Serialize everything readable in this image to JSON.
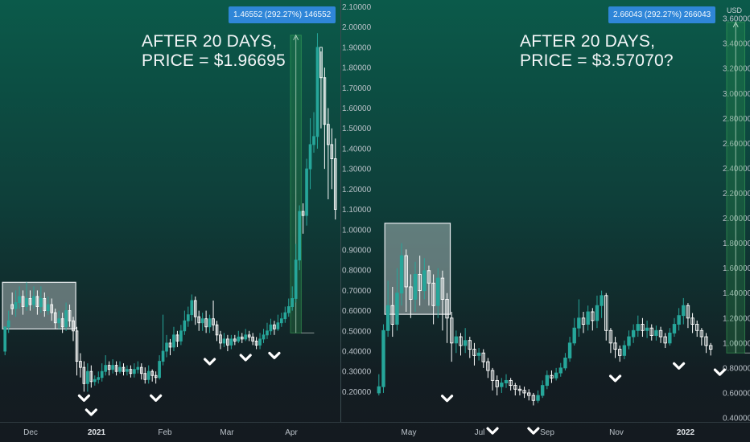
{
  "annotations": {
    "left_line1": "AFTER 20 DAYS,",
    "left_line2": "PRICE = $1.96695",
    "right_line1": "AFTER 20 DAYS,",
    "right_line2": "PRICE = $3.57070?"
  },
  "badges": {
    "left": "1.46552 (292.27%) 146552",
    "right": "2.66043 (292.27%) 266043"
  },
  "currency_label": "USD",
  "colors": {
    "up": "#26a69a",
    "down": "#ffffff",
    "box": "#e8ecef",
    "measure": "#2e9b4e",
    "badge": "#2f86d8"
  },
  "chart_data": [
    {
      "type": "candlestick",
      "panel": "left",
      "title": "",
      "x_ticks": [
        "Dec",
        "2021",
        "Feb",
        "Mar",
        "Apr"
      ],
      "bold_ticks": [
        "2021"
      ],
      "y_ticks": [
        "0.20000",
        "0.30000",
        "0.40000",
        "0.50000",
        "0.60000",
        "0.70000",
        "0.80000",
        "0.90000",
        "1.00000",
        "1.10000",
        "1.20000",
        "1.30000",
        "1.40000",
        "1.50000",
        "1.60000",
        "1.70000",
        "1.80000",
        "1.90000",
        "2.00000",
        "2.10000"
      ],
      "ylim": [
        0.15,
        2.11
      ],
      "candles": [
        [
          0.4,
          0.52,
          0.45,
          0.38
        ],
        [
          0.52,
          0.55,
          0.6,
          0.49
        ],
        [
          0.63,
          0.61,
          0.69,
          0.58
        ],
        [
          0.61,
          0.64,
          0.7,
          0.57
        ],
        [
          0.64,
          0.67,
          0.72,
          0.61
        ],
        [
          0.67,
          0.62,
          0.7,
          0.58
        ],
        [
          0.62,
          0.66,
          0.74,
          0.6
        ],
        [
          0.66,
          0.63,
          0.7,
          0.6
        ],
        [
          0.63,
          0.67,
          0.72,
          0.61
        ],
        [
          0.67,
          0.62,
          0.7,
          0.58
        ],
        [
          0.62,
          0.66,
          0.72,
          0.59
        ],
        [
          0.66,
          0.6,
          0.69,
          0.57
        ],
        [
          0.6,
          0.63,
          0.67,
          0.58
        ],
        [
          0.63,
          0.59,
          0.66,
          0.55
        ],
        [
          0.59,
          0.54,
          0.61,
          0.51
        ],
        [
          0.54,
          0.56,
          0.6,
          0.51
        ],
        [
          0.56,
          0.52,
          0.59,
          0.49
        ],
        [
          0.52,
          0.6,
          0.64,
          0.5
        ],
        [
          0.6,
          0.55,
          0.63,
          0.52
        ],
        [
          0.55,
          0.5,
          0.57,
          0.45
        ],
        [
          0.5,
          0.35,
          0.52,
          0.28
        ],
        [
          0.35,
          0.32,
          0.39,
          0.27
        ],
        [
          0.32,
          0.24,
          0.35,
          0.2
        ],
        [
          0.24,
          0.3,
          0.34,
          0.2
        ],
        [
          0.3,
          0.25,
          0.33,
          0.22
        ],
        [
          0.25,
          0.26,
          0.28,
          0.23
        ],
        [
          0.26,
          0.27,
          0.3,
          0.24
        ],
        [
          0.27,
          0.3,
          0.34,
          0.25
        ],
        [
          0.3,
          0.33,
          0.38,
          0.28
        ],
        [
          0.33,
          0.31,
          0.35,
          0.28
        ],
        [
          0.31,
          0.33,
          0.36,
          0.29
        ],
        [
          0.33,
          0.3,
          0.35,
          0.28
        ],
        [
          0.3,
          0.32,
          0.35,
          0.29
        ],
        [
          0.32,
          0.3,
          0.34,
          0.28
        ],
        [
          0.3,
          0.31,
          0.33,
          0.28
        ],
        [
          0.31,
          0.29,
          0.33,
          0.27
        ],
        [
          0.29,
          0.31,
          0.34,
          0.27
        ],
        [
          0.31,
          0.32,
          0.35,
          0.29
        ],
        [
          0.32,
          0.29,
          0.34,
          0.26
        ],
        [
          0.29,
          0.26,
          0.32,
          0.24
        ],
        [
          0.26,
          0.3,
          0.33,
          0.24
        ],
        [
          0.3,
          0.28,
          0.31,
          0.25
        ],
        [
          0.28,
          0.27,
          0.3,
          0.24
        ],
        [
          0.27,
          0.35,
          0.38,
          0.26
        ],
        [
          0.35,
          0.4,
          0.58,
          0.33
        ],
        [
          0.4,
          0.44,
          0.48,
          0.37
        ],
        [
          0.44,
          0.42,
          0.46,
          0.38
        ],
        [
          0.42,
          0.48,
          0.52,
          0.4
        ],
        [
          0.48,
          0.45,
          0.5,
          0.42
        ],
        [
          0.45,
          0.5,
          0.53,
          0.43
        ],
        [
          0.5,
          0.55,
          0.6,
          0.48
        ],
        [
          0.55,
          0.58,
          0.62,
          0.52
        ],
        [
          0.58,
          0.65,
          0.68,
          0.55
        ],
        [
          0.65,
          0.57,
          0.67,
          0.53
        ],
        [
          0.57,
          0.54,
          0.6,
          0.5
        ],
        [
          0.54,
          0.56,
          0.59,
          0.5
        ],
        [
          0.56,
          0.52,
          0.6,
          0.49
        ],
        [
          0.52,
          0.56,
          0.58,
          0.49
        ],
        [
          0.56,
          0.53,
          0.65,
          0.5
        ],
        [
          0.53,
          0.48,
          0.55,
          0.45
        ],
        [
          0.48,
          0.44,
          0.5,
          0.41
        ],
        [
          0.44,
          0.46,
          0.49,
          0.42
        ],
        [
          0.46,
          0.43,
          0.48,
          0.4
        ],
        [
          0.43,
          0.46,
          0.48,
          0.41
        ],
        [
          0.46,
          0.45,
          0.48,
          0.43
        ],
        [
          0.45,
          0.47,
          0.5,
          0.44
        ],
        [
          0.47,
          0.46,
          0.49,
          0.44
        ],
        [
          0.46,
          0.48,
          0.51,
          0.45
        ],
        [
          0.48,
          0.47,
          0.5,
          0.45
        ],
        [
          0.47,
          0.45,
          0.49,
          0.43
        ],
        [
          0.45,
          0.43,
          0.47,
          0.41
        ],
        [
          0.43,
          0.46,
          0.49,
          0.41
        ],
        [
          0.46,
          0.48,
          0.51,
          0.44
        ],
        [
          0.48,
          0.5,
          0.54,
          0.46
        ],
        [
          0.5,
          0.53,
          0.56,
          0.48
        ],
        [
          0.53,
          0.51,
          0.55,
          0.48
        ],
        [
          0.51,
          0.54,
          0.58,
          0.5
        ],
        [
          0.54,
          0.56,
          0.59,
          0.52
        ],
        [
          0.56,
          0.59,
          0.62,
          0.54
        ],
        [
          0.59,
          0.62,
          0.66,
          0.57
        ],
        [
          0.62,
          0.66,
          0.72,
          0.6
        ],
        [
          0.66,
          0.85,
          0.93,
          0.64
        ],
        [
          0.85,
          1.09,
          1.12,
          0.8
        ],
        [
          1.09,
          1.07,
          1.13,
          0.98
        ],
        [
          1.07,
          1.3,
          1.35,
          1.02
        ],
        [
          1.3,
          1.42,
          1.55,
          1.2
        ],
        [
          1.42,
          1.46,
          1.58,
          1.38
        ],
        [
          1.46,
          1.9,
          1.97,
          1.4
        ],
        [
          1.9,
          1.75,
          1.88,
          1.5
        ],
        [
          1.75,
          1.52,
          1.8,
          1.3
        ],
        [
          1.52,
          1.42,
          1.6,
          1.15
        ],
        [
          1.42,
          1.35,
          1.5,
          1.2
        ],
        [
          1.35,
          1.1,
          1.45,
          1.05
        ]
      ]
    },
    {
      "type": "candlestick",
      "panel": "right",
      "title": "",
      "x_ticks": [
        "May",
        "Jul",
        "Sep",
        "Nov",
        "2022"
      ],
      "bold_ticks": [
        "2022"
      ],
      "y_ticks": [
        "0.40000",
        "0.60000",
        "0.80000",
        "1.00000",
        "1.20000",
        "1.40000",
        "1.60000",
        "1.80000",
        "2.00000",
        "2.20000",
        "2.40000",
        "2.60000",
        "2.80000",
        "3.00000",
        "3.20000",
        "3.40000",
        "3.60000"
      ],
      "ylim": [
        0.4,
        3.71
      ],
      "candles": [
        [
          0.6,
          0.65,
          0.75,
          0.58
        ],
        [
          0.65,
          1.1,
          1.15,
          0.6
        ],
        [
          1.1,
          1.3,
          1.5,
          1.05
        ],
        [
          1.3,
          1.15,
          1.45,
          1.05
        ],
        [
          1.15,
          1.4,
          1.6,
          1.1
        ],
        [
          1.4,
          1.7,
          1.8,
          1.3
        ],
        [
          1.7,
          1.45,
          1.75,
          1.25
        ],
        [
          1.45,
          1.35,
          1.55,
          1.2
        ],
        [
          1.35,
          1.55,
          1.65,
          1.25
        ],
        [
          1.55,
          1.42,
          1.7,
          1.3
        ],
        [
          1.42,
          1.58,
          1.68,
          1.35
        ],
        [
          1.58,
          1.48,
          1.62,
          1.3
        ],
        [
          1.48,
          1.3,
          1.55,
          1.15
        ],
        [
          1.3,
          1.52,
          1.6,
          1.2
        ],
        [
          1.52,
          1.35,
          1.58,
          1.1
        ],
        [
          1.35,
          1.2,
          1.4,
          1.0
        ],
        [
          1.2,
          1.0,
          1.25,
          0.85
        ],
        [
          1.0,
          1.05,
          1.1,
          0.92
        ],
        [
          1.05,
          0.98,
          1.08,
          0.9
        ],
        [
          0.98,
          1.02,
          1.12,
          0.92
        ],
        [
          1.02,
          0.95,
          1.05,
          0.88
        ],
        [
          0.95,
          0.9,
          1.0,
          0.82
        ],
        [
          0.9,
          0.92,
          0.96,
          0.86
        ],
        [
          0.92,
          0.85,
          0.95,
          0.8
        ],
        [
          0.85,
          0.78,
          0.88,
          0.72
        ],
        [
          0.78,
          0.7,
          0.8,
          0.62
        ],
        [
          0.7,
          0.65,
          0.74,
          0.58
        ],
        [
          0.65,
          0.68,
          0.72,
          0.6
        ],
        [
          0.68,
          0.7,
          0.75,
          0.64
        ],
        [
          0.7,
          0.66,
          0.72,
          0.62
        ],
        [
          0.66,
          0.63,
          0.68,
          0.58
        ],
        [
          0.63,
          0.62,
          0.66,
          0.58
        ],
        [
          0.62,
          0.6,
          0.65,
          0.56
        ],
        [
          0.6,
          0.58,
          0.63,
          0.54
        ],
        [
          0.58,
          0.54,
          0.6,
          0.5
        ],
        [
          0.54,
          0.58,
          0.62,
          0.52
        ],
        [
          0.58,
          0.66,
          0.7,
          0.56
        ],
        [
          0.66,
          0.74,
          0.78,
          0.63
        ],
        [
          0.74,
          0.72,
          0.78,
          0.68
        ],
        [
          0.72,
          0.76,
          0.8,
          0.7
        ],
        [
          0.76,
          0.8,
          0.84,
          0.73
        ],
        [
          0.8,
          0.88,
          0.92,
          0.78
        ],
        [
          0.88,
          1.0,
          1.05,
          0.85
        ],
        [
          1.0,
          1.12,
          1.2,
          0.98
        ],
        [
          1.12,
          1.2,
          1.35,
          1.05
        ],
        [
          1.2,
          1.15,
          1.25,
          1.08
        ],
        [
          1.15,
          1.25,
          1.3,
          1.1
        ],
        [
          1.25,
          1.18,
          1.28,
          1.1
        ],
        [
          1.18,
          1.3,
          1.38,
          1.12
        ],
        [
          1.3,
          1.38,
          1.42,
          1.2
        ],
        [
          1.38,
          1.1,
          1.4,
          1.02
        ],
        [
          1.1,
          1.0,
          1.12,
          0.92
        ],
        [
          1.0,
          0.95,
          1.05,
          0.88
        ],
        [
          0.95,
          0.9,
          0.98,
          0.85
        ],
        [
          0.9,
          0.98,
          1.02,
          0.87
        ],
        [
          0.98,
          1.05,
          1.1,
          0.95
        ],
        [
          1.05,
          1.1,
          1.15,
          1.0
        ],
        [
          1.1,
          1.15,
          1.22,
          1.05
        ],
        [
          1.15,
          1.1,
          1.2,
          1.05
        ],
        [
          1.1,
          1.12,
          1.18,
          1.04
        ],
        [
          1.12,
          1.06,
          1.15,
          1.02
        ],
        [
          1.06,
          1.1,
          1.14,
          1.02
        ],
        [
          1.1,
          1.05,
          1.13,
          1.0
        ],
        [
          1.05,
          1.0,
          1.08,
          0.96
        ],
        [
          1.0,
          1.08,
          1.12,
          0.98
        ],
        [
          1.08,
          1.15,
          1.2,
          1.05
        ],
        [
          1.15,
          1.22,
          1.28,
          1.1
        ],
        [
          1.22,
          1.3,
          1.36,
          1.15
        ],
        [
          1.3,
          1.2,
          1.32,
          1.12
        ],
        [
          1.2,
          1.15,
          1.24,
          1.08
        ],
        [
          1.15,
          1.1,
          1.18,
          1.05
        ],
        [
          1.1,
          1.05,
          1.12,
          0.98
        ],
        [
          1.05,
          0.98,
          1.08,
          0.92
        ],
        [
          0.98,
          0.95,
          1.0,
          0.9
        ]
      ]
    }
  ]
}
